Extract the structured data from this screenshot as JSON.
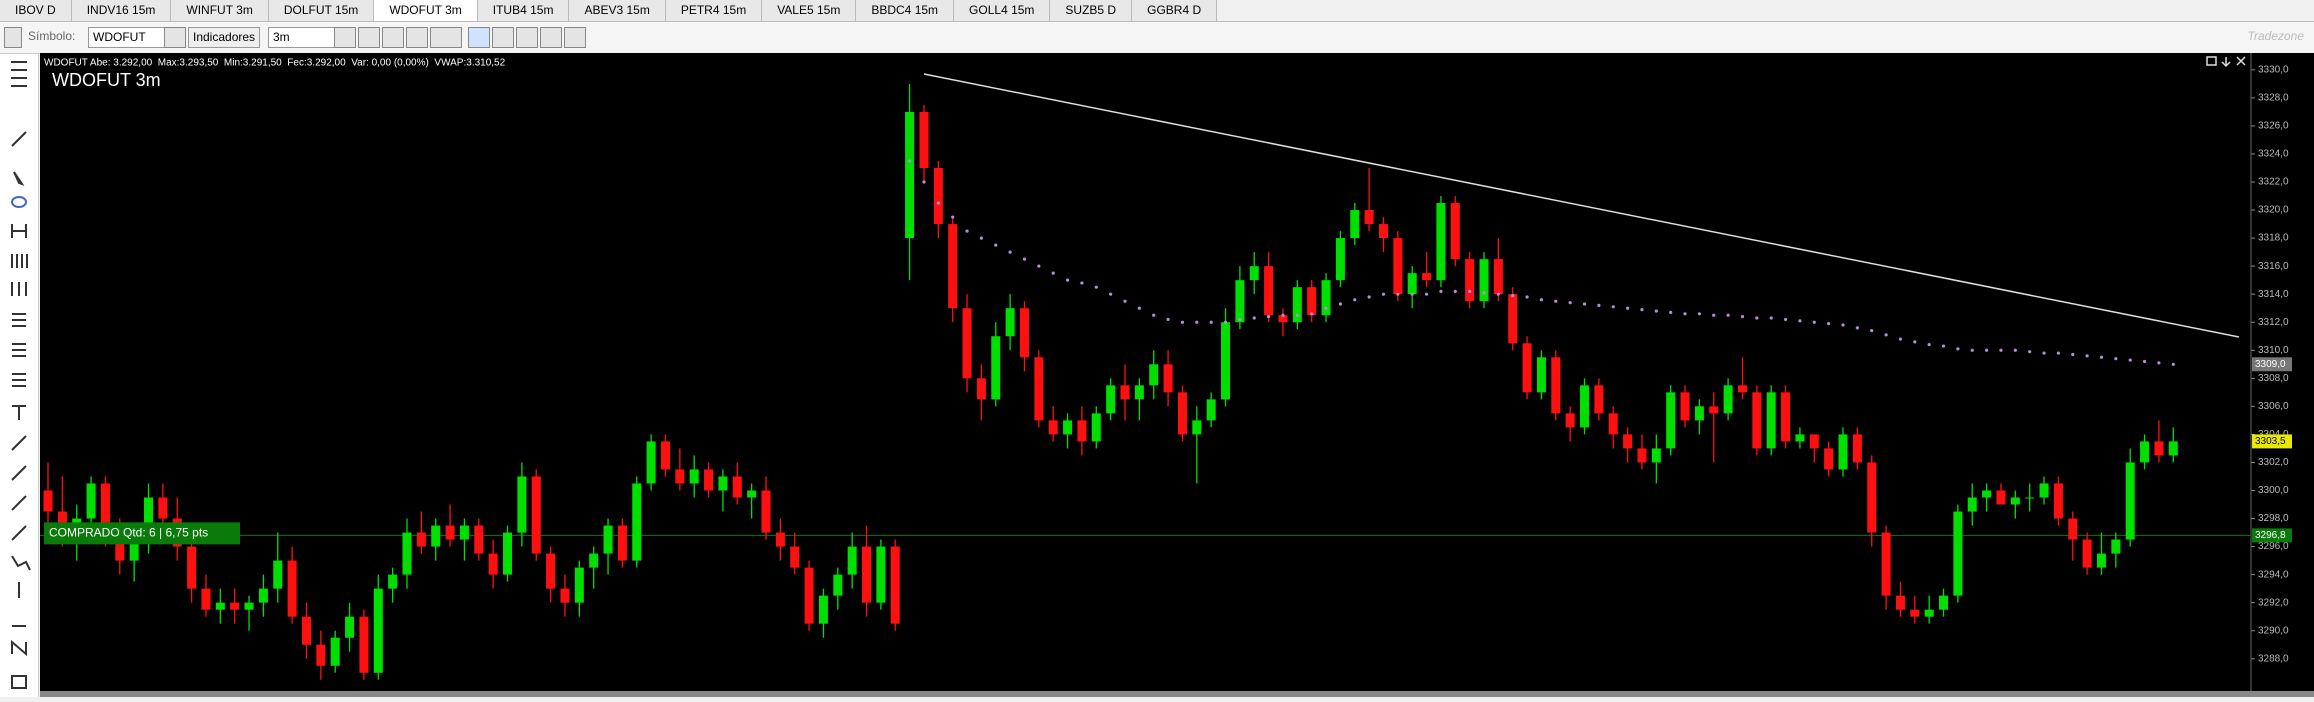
{
  "tabs": [
    "IBOV D",
    "INDV16 15m",
    "WINFUT 3m",
    "DOLFUT 15m",
    "WDOFUT 3m",
    "ITUB4 15m",
    "ABEV3 15m",
    "PETR4 15m",
    "VALE5 15m",
    "BBDC4 15m",
    "GOLL4 15m",
    "SUZB5 D",
    "GGBR4 D"
  ],
  "toolbar": {
    "symbol_label": "Símbolo:",
    "symbol": "WDOFUT",
    "indicators": "Indicadores",
    "interval": "3m",
    "logo": "Tradezone"
  },
  "chart_data": {
    "type": "candlestick",
    "title": "WDOFUT 3m",
    "info": "WDOFUT Abe: 3.292,00  Max:3.293,50  Min:3.291,50  Fec:3.292,00  Var: 0,00 (0,00%)  VWAP:3.310,52",
    "up_color": "#00e000",
    "down_color": "#ff1010",
    "vwap_color": "#b58cd6",
    "ylim": [
      3285.7,
      3331.2
    ],
    "yticks": [
      {
        "value": 3288,
        "label": "3288,0"
      },
      {
        "value": 3290,
        "label": "3290,0"
      },
      {
        "value": 3292,
        "label": "3292,0"
      },
      {
        "value": 3294,
        "label": "3294,0"
      },
      {
        "value": 3296,
        "label": "3296,0"
      },
      {
        "value": 3298,
        "label": "3298,0"
      },
      {
        "value": 3300,
        "label": "3300,0"
      },
      {
        "value": 3302,
        "label": "3302,0"
      },
      {
        "value": 3304,
        "label": "3304,0"
      },
      {
        "value": 3306,
        "label": "3306,0"
      },
      {
        "value": 3308,
        "label": "3308,0"
      },
      {
        "value": 3310,
        "label": "3310,0"
      },
      {
        "value": 3312,
        "label": "3312,0"
      },
      {
        "value": 3314,
        "label": "3314,0"
      },
      {
        "value": 3316,
        "label": "3316,0"
      },
      {
        "value": 3318,
        "label": "3318,0"
      },
      {
        "value": 3320,
        "label": "3320,0"
      },
      {
        "value": 3322,
        "label": "3322,0"
      },
      {
        "value": 3324,
        "label": "3324,0"
      },
      {
        "value": 3326,
        "label": "3326,0"
      },
      {
        "value": 3328,
        "label": "3328,0"
      },
      {
        "value": 3330,
        "label": "3330,0"
      }
    ],
    "position": {
      "label": "COMPRADO Qtd: 6 | 6,75 pts",
      "value": 3296.8,
      "value_label": "3296,8",
      "color": "#0a7a0a"
    },
    "last": {
      "value": 3303.5,
      "label": "3303,5",
      "color": "#e8e800"
    },
    "vwap_last": {
      "value": 3309,
      "label": "3309,0",
      "color": "#777777"
    },
    "candles": [
      [
        3300,
        3302,
        3297,
        3298.5
      ],
      [
        3298.5,
        3301,
        3296,
        3297
      ],
      [
        3297,
        3299,
        3295,
        3298
      ],
      [
        3298,
        3301,
        3297,
        3300.5
      ],
      [
        3300.5,
        3301,
        3296,
        3296.5
      ],
      [
        3296.5,
        3298,
        3294,
        3295
      ],
      [
        3295,
        3297,
        3293.5,
        3296.5
      ],
      [
        3296.5,
        3300.5,
        3295.5,
        3299.5
      ],
      [
        3299.5,
        3300.5,
        3297,
        3298
      ],
      [
        3298,
        3299.5,
        3295,
        3296
      ],
      [
        3296,
        3297,
        3292,
        3293
      ],
      [
        3293,
        3294,
        3291,
        3291.5
      ],
      [
        3291.5,
        3293,
        3290.5,
        3292
      ],
      [
        3292,
        3293,
        3290.5,
        3291.5
      ],
      [
        3291.5,
        3292.5,
        3290,
        3292
      ],
      [
        3292,
        3294,
        3291,
        3293
      ],
      [
        3293,
        3297,
        3292,
        3295
      ],
      [
        3295,
        3296,
        3290.5,
        3291
      ],
      [
        3291,
        3292,
        3288,
        3289
      ],
      [
        3289,
        3290,
        3286.5,
        3287.5
      ],
      [
        3287.5,
        3290,
        3287,
        3289.5
      ],
      [
        3289.5,
        3292,
        3288.5,
        3291
      ],
      [
        3291,
        3291.5,
        3286.5,
        3287
      ],
      [
        3287,
        3294,
        3286.5,
        3293
      ],
      [
        3293,
        3294.5,
        3292,
        3294
      ],
      [
        3294,
        3298,
        3293,
        3297
      ],
      [
        3297,
        3298.5,
        3295.5,
        3296
      ],
      [
        3296,
        3298,
        3295,
        3297.5
      ],
      [
        3297.5,
        3299,
        3296,
        3296.5
      ],
      [
        3296.5,
        3298,
        3295,
        3297.5
      ],
      [
        3297.5,
        3298,
        3295,
        3295.5
      ],
      [
        3295.5,
        3296.5,
        3293,
        3294
      ],
      [
        3294,
        3297.5,
        3293.5,
        3297
      ],
      [
        3297,
        3302,
        3296,
        3301
      ],
      [
        3301,
        3301.5,
        3295,
        3295.5
      ],
      [
        3295.5,
        3296,
        3292,
        3293
      ],
      [
        3293,
        3294,
        3291,
        3292
      ],
      [
        3292,
        3295,
        3291,
        3294.5
      ],
      [
        3294.5,
        3296,
        3293,
        3295.5
      ],
      [
        3295.5,
        3298,
        3294,
        3297.5
      ],
      [
        3297.5,
        3298,
        3294.5,
        3295
      ],
      [
        3295,
        3301,
        3294.5,
        3300.5
      ],
      [
        3300.5,
        3304,
        3300,
        3303.5
      ],
      [
        3303.5,
        3304,
        3301,
        3301.5
      ],
      [
        3301.5,
        3303,
        3300,
        3300.5
      ],
      [
        3300.5,
        3302.5,
        3299.5,
        3301.5
      ],
      [
        3301.5,
        3302,
        3299.5,
        3300
      ],
      [
        3300,
        3301.5,
        3298.5,
        3301
      ],
      [
        3301,
        3302,
        3299,
        3299.5
      ],
      [
        3299.5,
        3300.5,
        3298,
        3300
      ],
      [
        3300,
        3301,
        3296.5,
        3297
      ],
      [
        3297,
        3298,
        3295,
        3296
      ],
      [
        3296,
        3297,
        3294,
        3294.5
      ],
      [
        3294.5,
        3295,
        3290,
        3290.5
      ],
      [
        3290.5,
        3293,
        3289.5,
        3292.5
      ],
      [
        3292.5,
        3294.5,
        3291.5,
        3294
      ],
      [
        3294,
        3297,
        3293,
        3296
      ],
      [
        3296,
        3297.5,
        3291,
        3292
      ],
      [
        3292,
        3296.5,
        3291.5,
        3296
      ],
      [
        3296,
        3296.5,
        3290,
        3290.5
      ],
      [
        3318,
        3329,
        3315,
        3327
      ],
      [
        3327,
        3327.5,
        3322,
        3323
      ],
      [
        3323,
        3323.5,
        3318,
        3319
      ],
      [
        3319,
        3319.5,
        3312,
        3313
      ],
      [
        3313,
        3314,
        3307,
        3308
      ],
      [
        3308,
        3309,
        3305,
        3306.5
      ],
      [
        3306.5,
        3312,
        3306,
        3311
      ],
      [
        3311,
        3314,
        3310,
        3313
      ],
      [
        3313,
        3313.5,
        3308.5,
        3309.5
      ],
      [
        3309.5,
        3310,
        3304.5,
        3305
      ],
      [
        3305,
        3306,
        3303.5,
        3304
      ],
      [
        3304,
        3305.5,
        3303,
        3305
      ],
      [
        3305,
        3306,
        3302.5,
        3303.5
      ],
      [
        3303.5,
        3306,
        3303,
        3305.5
      ],
      [
        3305.5,
        3308,
        3305,
        3307.5
      ],
      [
        3307.5,
        3309,
        3305,
        3306.5
      ],
      [
        3306.5,
        3308,
        3305,
        3307.5
      ],
      [
        3307.5,
        3310,
        3306.5,
        3309
      ],
      [
        3309,
        3310,
        3306,
        3307
      ],
      [
        3307,
        3307.5,
        3303.5,
        3304
      ],
      [
        3304,
        3306,
        3300.5,
        3305
      ],
      [
        3305,
        3307,
        3304.5,
        3306.5
      ],
      [
        3306.5,
        3313,
        3306,
        3312
      ],
      [
        3312,
        3316,
        3311.5,
        3315
      ],
      [
        3315,
        3317,
        3314,
        3316
      ],
      [
        3316,
        3317,
        3312,
        3312.5
      ],
      [
        3312.5,
        3313,
        3311,
        3312
      ],
      [
        3312,
        3315,
        3311.5,
        3314.5
      ],
      [
        3314.5,
        3315,
        3312,
        3312.5
      ],
      [
        3312.5,
        3315.5,
        3312,
        3315
      ],
      [
        3315,
        3318.5,
        3314.5,
        3318
      ],
      [
        3318,
        3320.5,
        3317.5,
        3320
      ],
      [
        3320,
        3323,
        3318.5,
        3319
      ],
      [
        3319,
        3319.5,
        3317,
        3318
      ],
      [
        3318,
        3318.5,
        3313.5,
        3314
      ],
      [
        3314,
        3316,
        3313,
        3315.5
      ],
      [
        3315.5,
        3317,
        3314.5,
        3315
      ],
      [
        3315,
        3321,
        3314.5,
        3320.5
      ],
      [
        3320.5,
        3321,
        3316,
        3316.5
      ],
      [
        3316.5,
        3317,
        3313,
        3313.5
      ],
      [
        3313.5,
        3317,
        3313,
        3316.5
      ],
      [
        3316.5,
        3318,
        3313.5,
        3314
      ],
      [
        3314,
        3314.5,
        3310,
        3310.5
      ],
      [
        3310.5,
        3311,
        3306.5,
        3307
      ],
      [
        3307,
        3310,
        3306.5,
        3309.5
      ],
      [
        3309.5,
        3310,
        3305,
        3305.5
      ],
      [
        3305.5,
        3306,
        3303.5,
        3304.5
      ],
      [
        3304.5,
        3308,
        3304,
        3307.5
      ],
      [
        3307.5,
        3308,
        3305,
        3305.5
      ],
      [
        3305.5,
        3306,
        3303,
        3304
      ],
      [
        3304,
        3304.5,
        3302,
        3303
      ],
      [
        3303,
        3304,
        3301.5,
        3302
      ],
      [
        3302,
        3304,
        3300.5,
        3303
      ],
      [
        3303,
        3307.5,
        3302.5,
        3307
      ],
      [
        3307,
        3307.5,
        3304.5,
        3305
      ],
      [
        3305,
        3306.5,
        3304,
        3306
      ],
      [
        3306,
        3307,
        3302,
        3305.5
      ],
      [
        3305.5,
        3308,
        3305,
        3307.5
      ],
      [
        3307.5,
        3309.5,
        3306.5,
        3307
      ],
      [
        3307,
        3307.5,
        3302.5,
        3303
      ],
      [
        3303,
        3307.5,
        3302.5,
        3307
      ],
      [
        3307,
        3307.5,
        3303,
        3303.5
      ],
      [
        3303.5,
        3304.5,
        3303,
        3304
      ],
      [
        3304,
        3304,
        3302,
        3303
      ],
      [
        3303,
        3303.5,
        3301,
        3301.5
      ],
      [
        3301.5,
        3304.5,
        3301,
        3304
      ],
      [
        3304,
        3304.5,
        3301.5,
        3302
      ],
      [
        3302,
        3302.5,
        3296,
        3297
      ],
      [
        3297,
        3297.5,
        3291.5,
        3292.5
      ],
      [
        3292.5,
        3293.5,
        3291,
        3291.5
      ],
      [
        3291.5,
        3292.5,
        3290.5,
        3291
      ],
      [
        3291,
        3292.5,
        3290.5,
        3291.5
      ],
      [
        3291.5,
        3293,
        3291,
        3292.5
      ],
      [
        3292.5,
        3299,
        3292,
        3298.5
      ],
      [
        3298.5,
        3300.5,
        3297.5,
        3299.5
      ],
      [
        3299.5,
        3300.5,
        3298.5,
        3300
      ],
      [
        3300,
        3300.5,
        3299,
        3299
      ],
      [
        3299,
        3300,
        3298,
        3299.5
      ],
      [
        3299.5,
        3300.5,
        3298.5,
        3299.5
      ],
      [
        3299.5,
        3301,
        3299,
        3300.5
      ],
      [
        3300.5,
        3301,
        3297.5,
        3298
      ],
      [
        3298,
        3298.5,
        3295,
        3296.5
      ],
      [
        3296.5,
        3297,
        3294,
        3294.5
      ],
      [
        3294.5,
        3297,
        3294,
        3295.5
      ],
      [
        3295.5,
        3297,
        3294.5,
        3296.5
      ],
      [
        3296.5,
        3303,
        3296,
        3302
      ],
      [
        3302,
        3304,
        3301.5,
        3303.5
      ],
      [
        3303.5,
        3305,
        3302,
        3302.5
      ],
      [
        3302.5,
        3304.5,
        3302,
        3303.5
      ]
    ],
    "vwap": [
      null,
      null,
      null,
      null,
      null,
      null,
      null,
      null,
      null,
      null,
      null,
      null,
      null,
      null,
      null,
      null,
      null,
      null,
      null,
      null,
      null,
      null,
      null,
      null,
      null,
      null,
      null,
      null,
      null,
      null,
      null,
      null,
      null,
      null,
      null,
      null,
      null,
      null,
      null,
      null,
      null,
      null,
      null,
      null,
      null,
      null,
      null,
      null,
      null,
      null,
      null,
      null,
      null,
      null,
      null,
      null,
      null,
      null,
      null,
      null,
      3323.5,
      3322,
      3320.5,
      3319.5,
      3318.5,
      3318,
      3317.5,
      3317,
      3316.5,
      3316,
      3315.5,
      3315,
      3314.8,
      3314.5,
      3314,
      3313.5,
      3313,
      3312.5,
      3312.2,
      3312,
      3312,
      3312,
      3312,
      3312.2,
      3312.3,
      3312.4,
      3312.5,
      3312.5,
      3312.6,
      3313,
      3313.3,
      3313.6,
      3313.8,
      3314,
      3314,
      3314,
      3314,
      3314.2,
      3314.2,
      3314.2,
      3314.1,
      3314,
      3313.9,
      3313.8,
      3313.6,
      3313.5,
      3313.4,
      3313.3,
      3313.2,
      3313.1,
      3313,
      3312.9,
      3312.8,
      3312.7,
      3312.6,
      3312.6,
      3312.5,
      3312.5,
      3312.4,
      3312.3,
      3312.3,
      3312.2,
      3312.1,
      3312,
      3311.9,
      3311.8,
      3311.6,
      3311.4,
      3311.1,
      3310.8,
      3310.6,
      3310.4,
      3310.3,
      3310.1,
      3310,
      3310,
      3310,
      3310,
      3309.9,
      3309.8,
      3309.8,
      3309.7,
      3309.6,
      3309.5,
      3309.4,
      3309.3,
      3309.2,
      3309.1,
      3309
    ]
  }
}
